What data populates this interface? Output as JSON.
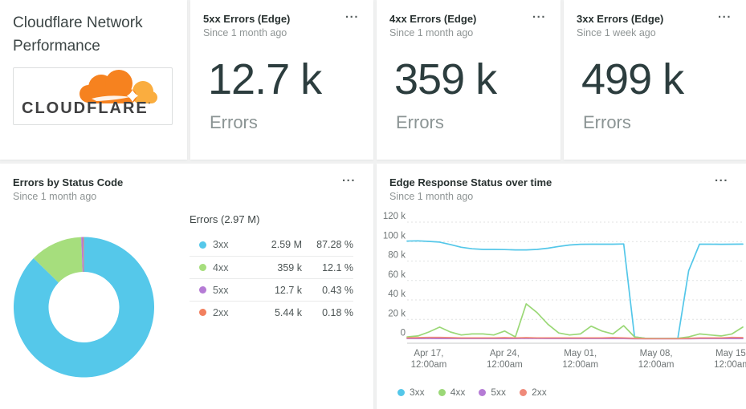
{
  "title_card": {
    "title": "Cloudflare Network Performance",
    "logo_word": "CLOUDFLARE",
    "logo_mark": "’",
    "logo_orange": "#f6821f",
    "logo_light_orange": "#faad3f"
  },
  "menu_icon": "...",
  "kpi_cards": [
    {
      "title": "5xx Errors (Edge)",
      "subtitle": "Since 1 month ago",
      "value": "12.7 k",
      "unit": "Errors"
    },
    {
      "title": "4xx Errors (Edge)",
      "subtitle": "Since 1 month ago",
      "value": "359 k",
      "unit": "Errors"
    },
    {
      "title": "3xx Errors (Edge)",
      "subtitle": "Since 1 week ago",
      "value": "499 k",
      "unit": "Errors"
    }
  ],
  "chart_data": [
    {
      "type": "pie",
      "title": "Errors by Status Code",
      "subtitle": "Since 1 month ago",
      "legend_header": "Errors (2.97 M)",
      "total_label": "2.97 M",
      "legend_position": "right",
      "slices": [
        {
          "name": "3xx",
          "value_label": "2.59 M",
          "percent": 87.28,
          "percent_label": "87.28 %",
          "color": "#55c8ea"
        },
        {
          "name": "4xx",
          "value_label": "359 k",
          "percent": 12.1,
          "percent_label": "12.1 %",
          "color": "#a6de7d"
        },
        {
          "name": "5xx",
          "value_label": "12.7 k",
          "percent": 0.43,
          "percent_label": "0.43 %",
          "color": "#b57bd5"
        },
        {
          "name": "2xx",
          "value_label": "5.44 k",
          "percent": 0.18,
          "percent_label": "0.18 %",
          "color": "#f2805f"
        }
      ]
    },
    {
      "type": "line",
      "title": "Edge Response Status over time",
      "subtitle": "Since 1 month ago",
      "ylim": [
        0,
        120000
      ],
      "grid": "dotted-horizontal",
      "legend_position": "bottom",
      "yticks": [
        {
          "value": 120000,
          "label": "120 k"
        },
        {
          "value": 100000,
          "label": "100 k"
        },
        {
          "value": 80000,
          "label": "80 k"
        },
        {
          "value": 60000,
          "label": "60 k"
        },
        {
          "value": 40000,
          "label": "40 k"
        },
        {
          "value": 20000,
          "label": "20 k"
        },
        {
          "value": 0,
          "label": "0"
        }
      ],
      "xticks": [
        {
          "day": 2,
          "line1": "Apr 17,",
          "line2": "12:00am"
        },
        {
          "day": 9,
          "line1": "Apr 24,",
          "line2": "12:00am"
        },
        {
          "day": 16,
          "line1": "May 01,",
          "line2": "12:00am"
        },
        {
          "day": 23,
          "line1": "May 08,",
          "line2": "12:00am"
        },
        {
          "day": 30,
          "line1": "May 15,",
          "line2": "12:00am"
        }
      ],
      "series": [
        {
          "name": "3xx",
          "color": "#54c7e9",
          "values": [
            100500,
            100800,
            100200,
            99500,
            97000,
            94200,
            92600,
            92000,
            92000,
            91800,
            91500,
            91500,
            92000,
            93200,
            95000,
            96500,
            97200,
            97300,
            97300,
            97300,
            97600,
            2000,
            500,
            400,
            400,
            500,
            70000,
            97300,
            97300,
            97200,
            97300,
            97400
          ]
        },
        {
          "name": "4xx",
          "color": "#9bd877",
          "values": [
            2000,
            3000,
            7000,
            12000,
            7000,
            4000,
            5000,
            5000,
            4000,
            8000,
            2000,
            36000,
            27000,
            15000,
            6000,
            4000,
            5000,
            13000,
            8000,
            5000,
            13500,
            2000,
            500,
            300,
            300,
            500,
            2000,
            5000,
            4000,
            3000,
            5000,
            12000
          ]
        },
        {
          "name": "5xx",
          "color": "#b57bd5",
          "values": [
            300,
            300,
            400,
            300,
            300,
            300,
            300,
            300,
            300,
            300,
            300,
            500,
            400,
            300,
            300,
            300,
            300,
            300,
            300,
            300,
            300,
            100,
            50,
            50,
            50,
            50,
            100,
            300,
            300,
            300,
            300,
            300
          ]
        },
        {
          "name": "2xx",
          "color": "#ef8a7a",
          "values": [
            1000,
            1200,
            1500,
            1500,
            1200,
            1000,
            1000,
            1000,
            1000,
            1200,
            1000,
            1200,
            1000,
            1000,
            1000,
            1000,
            1000,
            1000,
            1000,
            1200,
            1000,
            500,
            200,
            200,
            200,
            200,
            500,
            1000,
            1000,
            1000,
            1500,
            1200
          ]
        }
      ]
    }
  ]
}
